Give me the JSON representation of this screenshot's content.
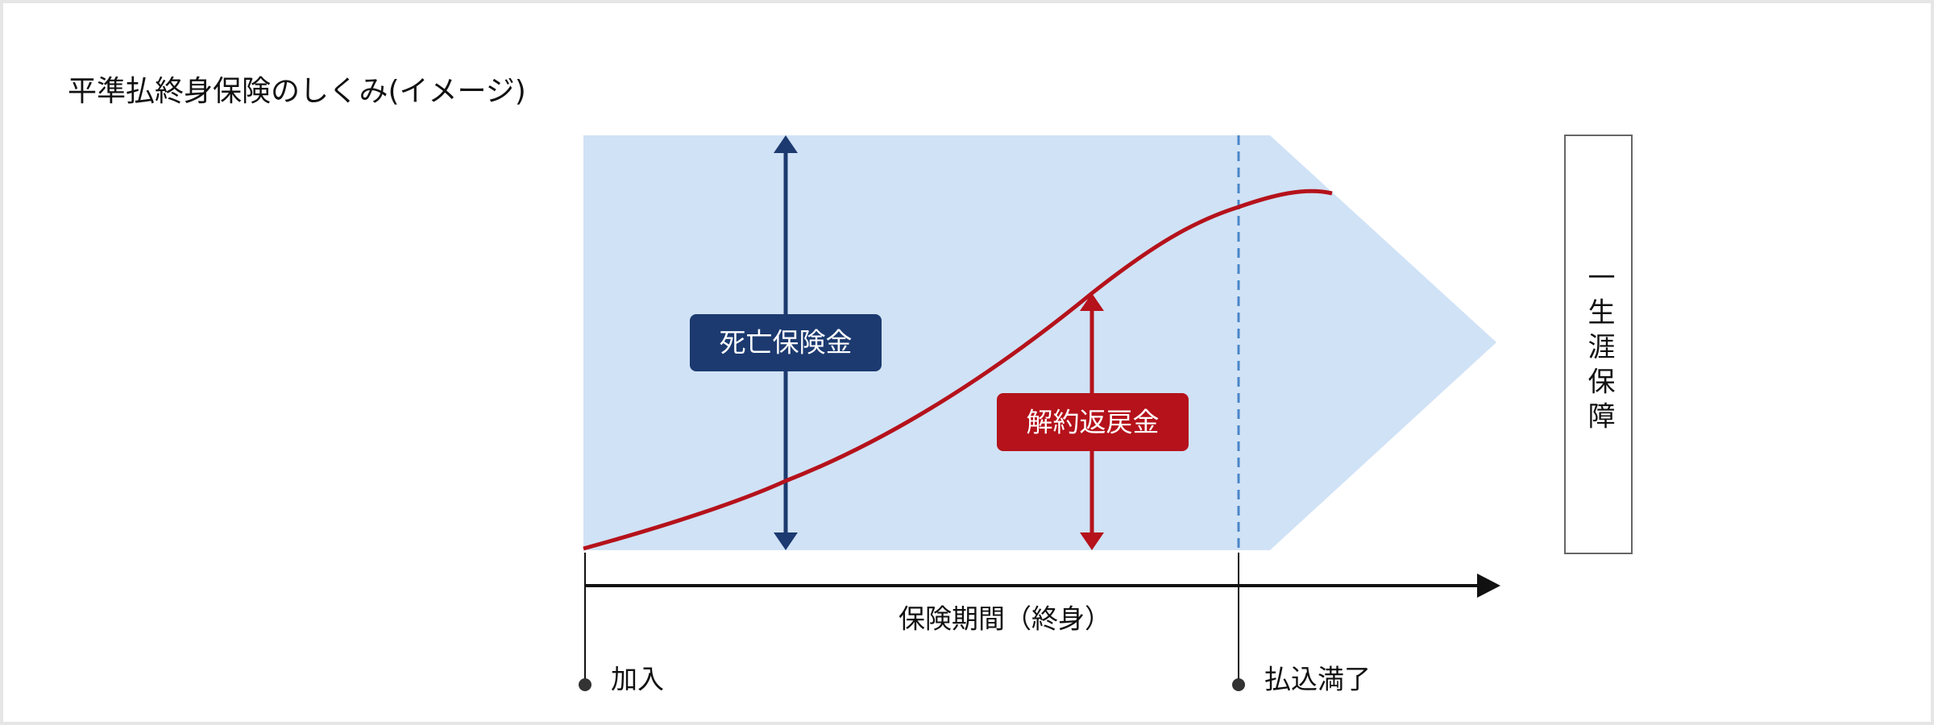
{
  "header": {
    "title": "平準払終身保険のしくみ(イメージ)"
  },
  "diagram": {
    "death_benefit_label": "死亡保険金",
    "surrender_value_label": "解約返戻金",
    "period_label": "保険期間（終身）",
    "start_label": "加入",
    "payment_end_label": "払込満了",
    "lifetime_label": "一生涯保障"
  }
}
